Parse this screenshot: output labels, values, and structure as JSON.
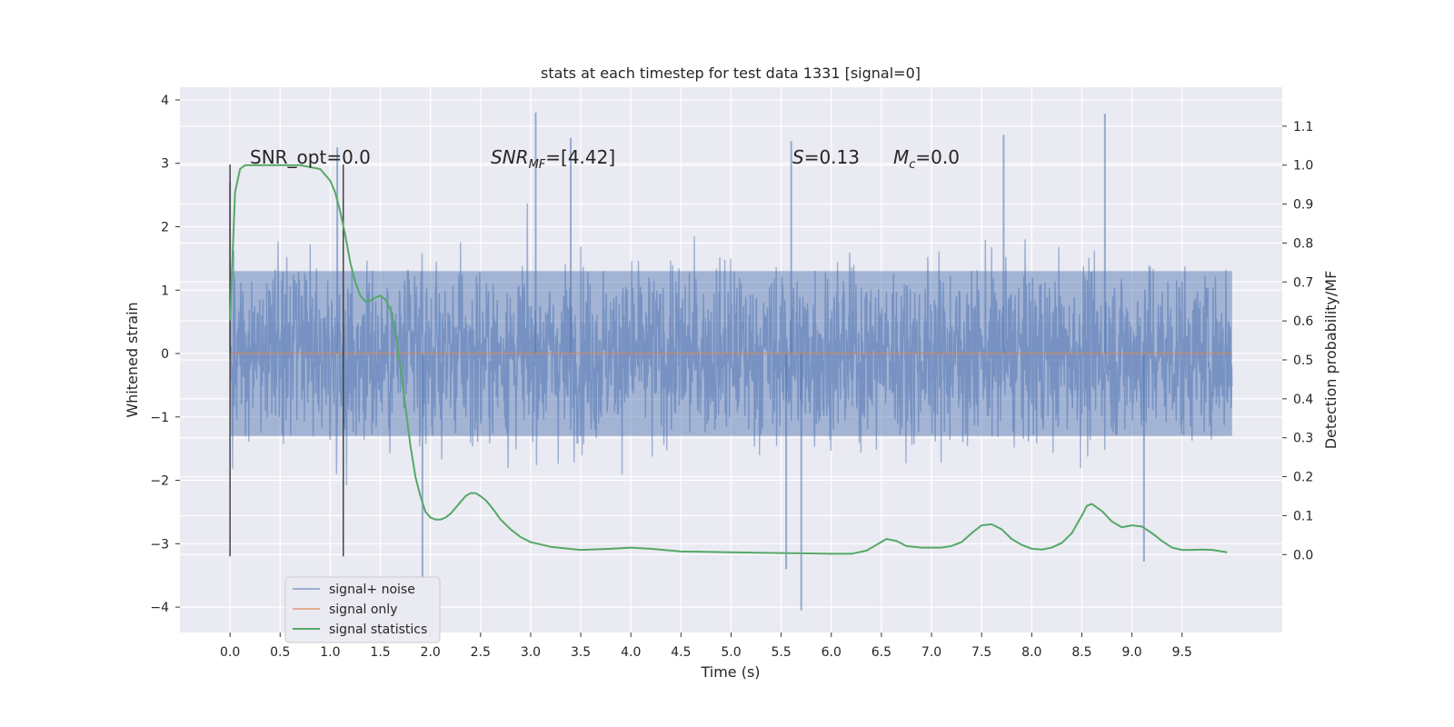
{
  "chart_data": {
    "type": "line",
    "title": "stats at each timestep for test data 1331 [signal=0]",
    "xlabel": "Time (s)",
    "ylabel": "Whitened strain",
    "ylabel_right": "Detection probability/MF",
    "xlim": [
      -0.5,
      10.5
    ],
    "ylim": [
      -4.4,
      4.2
    ],
    "ylim_right": [
      -0.2,
      1.2
    ],
    "x_ticks": [
      "0.0",
      "0.5",
      "1.0",
      "1.5",
      "2.0",
      "2.5",
      "3.0",
      "3.5",
      "4.0",
      "4.5",
      "5.0",
      "5.5",
      "6.0",
      "6.5",
      "7.0",
      "7.5",
      "8.0",
      "8.5",
      "9.0",
      "9.5"
    ],
    "y_ticks": [
      "−4",
      "−3",
      "−2",
      "−1",
      "0",
      "1",
      "2",
      "3",
      "4"
    ],
    "y_ticks_right": [
      "0.0",
      "0.1",
      "0.2",
      "0.3",
      "0.4",
      "0.5",
      "0.6",
      "0.7",
      "0.8",
      "0.9",
      "1.0",
      "1.1"
    ],
    "grid": true,
    "legend_position": "lower-left",
    "annotations": {
      "snr_opt": "SNR_opt=0.0",
      "snr_mf_main": "SNR",
      "snr_mf_sub": "MF",
      "snr_mf_value": "=[4.42]",
      "s_var": "S",
      "s_value": "=0.13",
      "mc_var": "M",
      "mc_sub": "c",
      "mc_value": "=0.0"
    },
    "vertical_markers": [
      {
        "x": 0.0,
        "y_range": [
          -3.2,
          2.98
        ]
      },
      {
        "x": 1.13,
        "y_range": [
          -3.2,
          2.98
        ]
      }
    ],
    "series": [
      {
        "name": "signal+ noise",
        "color": "#4C72B0",
        "style": "noise-band",
        "x_range": [
          0.0,
          10.0
        ],
        "typical_range": [
          -1.3,
          1.3
        ],
        "envelope_range": [
          -2.7,
          2.7
        ],
        "extreme_points": [
          {
            "x": 0.0,
            "y": 2.7
          },
          {
            "x": 1.07,
            "y": 3.25
          },
          {
            "x": 1.92,
            "y": -3.55
          },
          {
            "x": 3.05,
            "y": 3.8
          },
          {
            "x": 3.4,
            "y": 3.4
          },
          {
            "x": 5.55,
            "y": -3.4
          },
          {
            "x": 5.6,
            "y": 3.35
          },
          {
            "x": 5.7,
            "y": -4.05
          },
          {
            "x": 8.73,
            "y": 3.78
          },
          {
            "x": 9.12,
            "y": -3.28
          },
          {
            "x": 7.72,
            "y": 3.45
          }
        ]
      },
      {
        "name": "signal only",
        "color": "#DD8452",
        "x": [
          0.0,
          10.0
        ],
        "values": [
          0.0,
          0.0
        ]
      },
      {
        "name": "signal statistics",
        "color": "#55A868",
        "axis": "right",
        "x": [
          0.0,
          0.05,
          0.1,
          0.15,
          0.2,
          0.3,
          0.5,
          0.7,
          0.9,
          1.0,
          1.05,
          1.1,
          1.15,
          1.2,
          1.25,
          1.3,
          1.35,
          1.4,
          1.45,
          1.5,
          1.55,
          1.6,
          1.65,
          1.7,
          1.75,
          1.8,
          1.85,
          1.9,
          1.95,
          2.0,
          2.05,
          2.1,
          2.15,
          2.2,
          2.25,
          2.3,
          2.35,
          2.4,
          2.45,
          2.5,
          2.55,
          2.6,
          2.65,
          2.7,
          2.8,
          2.9,
          3.0,
          3.2,
          3.5,
          3.8,
          4.0,
          4.2,
          4.5,
          5.0,
          5.5,
          6.0,
          6.2,
          6.35,
          6.45,
          6.55,
          6.65,
          6.75,
          6.9,
          7.1,
          7.2,
          7.3,
          7.4,
          7.5,
          7.6,
          7.7,
          7.8,
          7.9,
          8.0,
          8.1,
          8.2,
          8.3,
          8.4,
          8.5,
          8.55,
          8.6,
          8.7,
          8.8,
          8.9,
          9.0,
          9.1,
          9.2,
          9.3,
          9.4,
          9.5,
          9.6,
          9.7,
          9.8,
          9.9,
          9.95
        ],
        "values": [
          0.6,
          0.93,
          0.99,
          1.0,
          1.0,
          1.0,
          1.0,
          1.0,
          0.99,
          0.96,
          0.93,
          0.88,
          0.82,
          0.75,
          0.7,
          0.665,
          0.65,
          0.652,
          0.66,
          0.665,
          0.655,
          0.63,
          0.57,
          0.48,
          0.38,
          0.28,
          0.2,
          0.15,
          0.11,
          0.095,
          0.09,
          0.09,
          0.095,
          0.105,
          0.12,
          0.135,
          0.15,
          0.158,
          0.158,
          0.15,
          0.14,
          0.125,
          0.108,
          0.09,
          0.065,
          0.045,
          0.032,
          0.02,
          0.012,
          0.015,
          0.018,
          0.015,
          0.008,
          0.006,
          0.004,
          0.002,
          0.002,
          0.01,
          0.025,
          0.04,
          0.035,
          0.022,
          0.018,
          0.018,
          0.022,
          0.032,
          0.055,
          0.075,
          0.078,
          0.065,
          0.04,
          0.025,
          0.015,
          0.013,
          0.018,
          0.03,
          0.055,
          0.1,
          0.125,
          0.13,
          0.112,
          0.085,
          0.07,
          0.075,
          0.072,
          0.055,
          0.035,
          0.018,
          0.012,
          0.012,
          0.013,
          0.012,
          0.008,
          0.006
        ]
      }
    ]
  }
}
